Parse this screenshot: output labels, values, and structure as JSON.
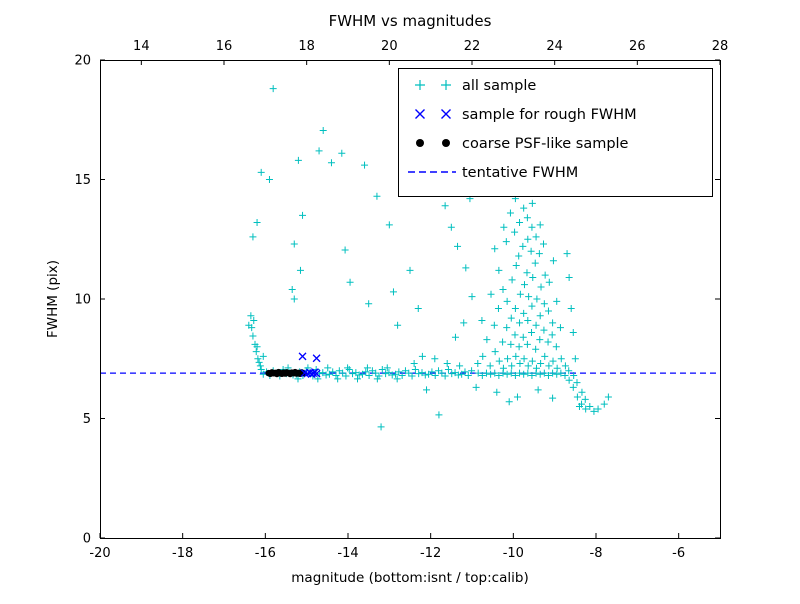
{
  "chart_data": {
    "type": "scatter",
    "title": "FWHM vs magnitudes",
    "xlabel": "magnitude (bottom:isnt / top:calib)",
    "ylabel": "FWHM (pix)",
    "xlim": [
      -20,
      -5
    ],
    "xlim_top": [
      13,
      28
    ],
    "ylim": [
      0,
      20
    ],
    "xticks_bottom": [
      -20,
      -18,
      -16,
      -14,
      -12,
      -10,
      -8,
      -6
    ],
    "xticks_top": [
      14,
      16,
      18,
      20,
      22,
      24,
      26,
      28
    ],
    "yticks": [
      0,
      5,
      10,
      15,
      20
    ],
    "grid": false,
    "legend_position": "upper right",
    "colors": {
      "all_sample": "#00bfbf",
      "rough_sample": "#0000ff",
      "coarse_sample": "#000000",
      "tentative_line": "#0000ff",
      "frame": "#000000",
      "background": "#ffffff"
    },
    "tentative_fwhm": 6.9,
    "series": [
      {
        "name": "all sample",
        "marker": "plus",
        "color": "#00bfbf",
        "points": [
          [
            -16.05,
            6.85
          ],
          [
            -15.97,
            6.95
          ],
          [
            -15.89,
            6.8
          ],
          [
            -15.81,
            7.0
          ],
          [
            -15.73,
            6.9
          ],
          [
            -15.65,
            6.78
          ],
          [
            -15.57,
            7.05
          ],
          [
            -15.49,
            6.88
          ],
          [
            -15.41,
            6.92
          ],
          [
            -15.33,
            6.82
          ],
          [
            -15.25,
            6.85
          ],
          [
            -15.17,
            6.95
          ],
          [
            -15.09,
            6.8
          ],
          [
            -15.01,
            7.0
          ],
          [
            -14.93,
            6.9
          ],
          [
            -14.85,
            6.78
          ],
          [
            -14.77,
            7.05
          ],
          [
            -14.69,
            6.88
          ],
          [
            -14.61,
            6.92
          ],
          [
            -14.53,
            6.82
          ],
          [
            -14.45,
            6.85
          ],
          [
            -14.37,
            6.95
          ],
          [
            -14.29,
            6.8
          ],
          [
            -14.21,
            7.0
          ],
          [
            -14.13,
            6.9
          ],
          [
            -14.05,
            6.78
          ],
          [
            -13.97,
            7.05
          ],
          [
            -13.89,
            6.88
          ],
          [
            -13.81,
            6.92
          ],
          [
            -13.73,
            6.82
          ],
          [
            -13.65,
            6.85
          ],
          [
            -13.57,
            6.95
          ],
          [
            -13.49,
            6.8
          ],
          [
            -13.41,
            7.0
          ],
          [
            -13.33,
            6.9
          ],
          [
            -13.25,
            6.78
          ],
          [
            -13.17,
            7.05
          ],
          [
            -13.09,
            6.88
          ],
          [
            -13.01,
            6.92
          ],
          [
            -12.93,
            6.82
          ],
          [
            -12.85,
            6.85
          ],
          [
            -12.77,
            6.95
          ],
          [
            -12.69,
            6.8
          ],
          [
            -12.61,
            7.0
          ],
          [
            -12.53,
            6.9
          ],
          [
            -12.45,
            6.78
          ],
          [
            -12.37,
            7.05
          ],
          [
            -12.29,
            6.88
          ],
          [
            -12.21,
            6.92
          ],
          [
            -12.13,
            6.82
          ],
          [
            -15.45,
            7.12
          ],
          [
            -15.21,
            6.66
          ],
          [
            -14.97,
            7.12
          ],
          [
            -14.73,
            6.66
          ],
          [
            -14.49,
            7.12
          ],
          [
            -14.25,
            6.66
          ],
          [
            -14.01,
            7.12
          ],
          [
            -13.77,
            6.66
          ],
          [
            -13.53,
            7.12
          ],
          [
            -13.29,
            6.66
          ],
          [
            -13.05,
            7.12
          ],
          [
            -12.81,
            6.66
          ],
          [
            -12.05,
            6.85
          ],
          [
            -11.97,
            6.95
          ],
          [
            -11.89,
            6.8
          ],
          [
            -11.81,
            7.0
          ],
          [
            -11.73,
            6.9
          ],
          [
            -11.65,
            6.78
          ],
          [
            -11.57,
            7.05
          ],
          [
            -11.49,
            6.88
          ],
          [
            -11.41,
            6.92
          ],
          [
            -11.33,
            6.82
          ],
          [
            -11.25,
            6.85
          ],
          [
            -11.17,
            6.95
          ],
          [
            -11.09,
            6.8
          ],
          [
            -11.01,
            7.0
          ],
          [
            -11.6,
            7.3
          ],
          [
            -11.9,
            7.5
          ],
          [
            -12.2,
            7.6
          ],
          [
            -11.3,
            7.2
          ],
          [
            -12.4,
            7.3
          ],
          [
            -16.12,
            7.2
          ],
          [
            -16.18,
            7.5
          ],
          [
            -16.22,
            7.8
          ],
          [
            -16.25,
            8.1
          ],
          [
            -16.3,
            8.45
          ],
          [
            -16.33,
            8.8
          ],
          [
            -16.28,
            9.1
          ],
          [
            -16.2,
            8.0
          ],
          [
            -16.15,
            7.35
          ],
          [
            -16.35,
            9.3
          ],
          [
            -16.1,
            7.05
          ],
          [
            -16.4,
            8.9
          ],
          [
            -16.05,
            7.6
          ],
          [
            -16.3,
            12.6
          ],
          [
            -16.2,
            13.2
          ],
          [
            -15.81,
            18.8
          ],
          [
            -14.6,
            17.05
          ],
          [
            -16.1,
            15.3
          ],
          [
            -15.9,
            15.0
          ],
          [
            -15.2,
            15.8
          ],
          [
            -15.1,
            13.5
          ],
          [
            -15.3,
            12.3
          ],
          [
            -15.35,
            10.4
          ],
          [
            -15.15,
            11.2
          ],
          [
            -15.3,
            10.0
          ],
          [
            -14.7,
            16.2
          ],
          [
            -14.4,
            15.7
          ],
          [
            -14.15,
            16.1
          ],
          [
            -13.6,
            15.6
          ],
          [
            -13.3,
            14.3
          ],
          [
            -12.65,
            16.8
          ],
          [
            -13.0,
            13.1
          ],
          [
            -12.5,
            11.2
          ],
          [
            -14.07,
            12.05
          ],
          [
            -13.95,
            10.7
          ],
          [
            -13.5,
            9.8
          ],
          [
            -12.8,
            8.9
          ],
          [
            -12.3,
            9.6
          ],
          [
            -12.9,
            10.3
          ],
          [
            -13.2,
            4.65
          ],
          [
            -11.8,
            5.15
          ],
          [
            -12.1,
            6.2
          ],
          [
            -11.4,
            8.4
          ],
          [
            -11.2,
            9.0
          ],
          [
            -11.0,
            10.1
          ],
          [
            -11.15,
            11.3
          ],
          [
            -11.35,
            12.2
          ],
          [
            -11.5,
            13.0
          ],
          [
            -11.65,
            13.9
          ],
          [
            -11.05,
            14.2
          ],
          [
            -10.85,
            6.9
          ],
          [
            -10.86,
            7.3
          ],
          [
            -10.75,
            6.8
          ],
          [
            -10.74,
            7.6
          ],
          [
            -10.76,
            9.1
          ],
          [
            -10.65,
            6.9
          ],
          [
            -10.64,
            8.3
          ],
          [
            -10.55,
            6.85
          ],
          [
            -10.56,
            7.2
          ],
          [
            -10.54,
            10.2
          ],
          [
            -10.45,
            6.9
          ],
          [
            -10.44,
            7.8
          ],
          [
            -10.46,
            8.9
          ],
          [
            -10.45,
            12.1
          ],
          [
            -10.35,
            6.8
          ],
          [
            -10.34,
            7.4
          ],
          [
            -10.36,
            9.6
          ],
          [
            -10.35,
            11.2
          ],
          [
            -10.25,
            6.9
          ],
          [
            -10.24,
            7.1
          ],
          [
            -10.26,
            8.2
          ],
          [
            -10.25,
            10.4
          ],
          [
            -10.23,
            13.0
          ],
          [
            -10.15,
            6.85
          ],
          [
            -10.14,
            7.5
          ],
          [
            -10.16,
            8.8
          ],
          [
            -10.15,
            9.9
          ],
          [
            -10.17,
            12.4
          ],
          [
            -10.05,
            6.9
          ],
          [
            -10.04,
            7.2
          ],
          [
            -10.06,
            8.1
          ],
          [
            -10.05,
            9.2
          ],
          [
            -10.03,
            10.8
          ],
          [
            -10.07,
            13.6
          ],
          [
            -9.95,
            6.8
          ],
          [
            -9.94,
            7.6
          ],
          [
            -9.96,
            8.5
          ],
          [
            -9.95,
            9.6
          ],
          [
            -9.93,
            11.4
          ],
          [
            -9.97,
            12.8
          ],
          [
            -9.95,
            14.2
          ],
          [
            -9.85,
            6.9
          ],
          [
            -9.84,
            7.3
          ],
          [
            -9.86,
            8.0
          ],
          [
            -9.85,
            9.0
          ],
          [
            -9.83,
            10.2
          ],
          [
            -9.87,
            11.8
          ],
          [
            -9.85,
            13.2
          ],
          [
            -9.75,
            6.85
          ],
          [
            -9.74,
            7.5
          ],
          [
            -9.76,
            8.4
          ],
          [
            -9.75,
            9.4
          ],
          [
            -9.73,
            10.6
          ],
          [
            -9.77,
            12.2
          ],
          [
            -9.75,
            13.8
          ],
          [
            -9.74,
            14.6
          ],
          [
            -9.65,
            6.9
          ],
          [
            -9.64,
            7.2
          ],
          [
            -9.66,
            8.1
          ],
          [
            -9.65,
            9.1
          ],
          [
            -9.63,
            10.1
          ],
          [
            -9.67,
            11.1
          ],
          [
            -9.65,
            12.5
          ],
          [
            -9.66,
            13.4
          ],
          [
            -9.55,
            6.8
          ],
          [
            -9.54,
            7.4
          ],
          [
            -9.56,
            8.6
          ],
          [
            -9.55,
            9.7
          ],
          [
            -9.53,
            10.9
          ],
          [
            -9.57,
            12.0
          ],
          [
            -9.55,
            13.0
          ],
          [
            -9.54,
            14.0
          ],
          [
            -9.45,
            6.9
          ],
          [
            -9.44,
            7.1
          ],
          [
            -9.46,
            7.9
          ],
          [
            -9.45,
            8.9
          ],
          [
            -9.43,
            10.0
          ],
          [
            -9.47,
            11.5
          ],
          [
            -9.45,
            12.6
          ],
          [
            -9.35,
            6.85
          ],
          [
            -9.34,
            7.3
          ],
          [
            -9.36,
            8.3
          ],
          [
            -9.35,
            9.3
          ],
          [
            -9.33,
            10.5
          ],
          [
            -9.37,
            11.9
          ],
          [
            -9.35,
            13.1
          ],
          [
            -9.25,
            6.9
          ],
          [
            -9.24,
            7.6
          ],
          [
            -9.26,
            8.7
          ],
          [
            -9.25,
            9.8
          ],
          [
            -9.23,
            11.0
          ],
          [
            -9.27,
            12.3
          ],
          [
            -9.15,
            6.8
          ],
          [
            -9.14,
            7.2
          ],
          [
            -9.16,
            8.2
          ],
          [
            -9.15,
            9.5
          ],
          [
            -9.13,
            10.7
          ],
          [
            -9.05,
            6.9
          ],
          [
            -9.04,
            7.4
          ],
          [
            -9.06,
            8.5
          ],
          [
            -9.05,
            9.0
          ],
          [
            -9.03,
            11.6
          ],
          [
            -8.95,
            6.85
          ],
          [
            -8.94,
            7.1
          ],
          [
            -8.96,
            8.0
          ],
          [
            -8.95,
            9.9
          ],
          [
            -8.85,
            6.9
          ],
          [
            -8.84,
            7.5
          ],
          [
            -8.86,
            8.8
          ],
          [
            -8.75,
            6.8
          ],
          [
            -8.74,
            7.2
          ],
          [
            -8.65,
            6.6
          ],
          [
            -8.66,
            7.0
          ],
          [
            -8.55,
            6.3
          ],
          [
            -8.54,
            6.8
          ],
          [
            -8.45,
            5.9
          ],
          [
            -8.46,
            6.5
          ],
          [
            -8.35,
            5.6
          ],
          [
            -8.34,
            6.1
          ],
          [
            -8.25,
            5.4
          ],
          [
            -8.26,
            5.8
          ],
          [
            -8.15,
            5.5
          ],
          [
            -8.05,
            5.3
          ],
          [
            -7.95,
            5.4
          ],
          [
            -9.5,
            15.1
          ],
          [
            -10.0,
            14.9
          ],
          [
            -8.5,
            7.5
          ],
          [
            -8.55,
            8.6
          ],
          [
            -8.6,
            9.6
          ],
          [
            -8.65,
            10.9
          ],
          [
            -8.7,
            11.9
          ],
          [
            -10.9,
            6.3
          ],
          [
            -10.4,
            6.1
          ],
          [
            -9.9,
            5.9
          ],
          [
            -9.4,
            6.2
          ],
          [
            -10.1,
            5.7
          ],
          [
            -9.05,
            5.85
          ],
          [
            -7.8,
            5.6
          ],
          [
            -7.7,
            5.9
          ],
          [
            -8.4,
            5.5
          ]
        ]
      },
      {
        "name": "sample for rough FWHM",
        "marker": "x",
        "color": "#0000ff",
        "points": [
          [
            -15.05,
            6.9
          ],
          [
            -14.98,
            6.88
          ],
          [
            -14.92,
            6.92
          ],
          [
            -14.88,
            6.86
          ],
          [
            -14.84,
            6.9
          ],
          [
            -14.8,
            6.94
          ],
          [
            -14.76,
            6.88
          ],
          [
            -15.1,
            7.6
          ],
          [
            -14.76,
            7.52
          ]
        ]
      },
      {
        "name": "coarse PSF-like sample",
        "marker": "circle",
        "color": "#000000",
        "points": [
          [
            -15.92,
            6.9
          ],
          [
            -15.88,
            6.87
          ],
          [
            -15.84,
            6.93
          ],
          [
            -15.8,
            6.89
          ],
          [
            -15.76,
            6.91
          ],
          [
            -15.72,
            6.86
          ],
          [
            -15.68,
            6.94
          ],
          [
            -15.64,
            6.9
          ],
          [
            -15.6,
            6.87
          ],
          [
            -15.56,
            6.92
          ],
          [
            -15.52,
            6.88
          ],
          [
            -15.48,
            6.93
          ],
          [
            -15.44,
            6.9
          ],
          [
            -15.4,
            6.86
          ],
          [
            -15.36,
            6.92
          ],
          [
            -15.32,
            6.89
          ],
          [
            -15.28,
            6.94
          ],
          [
            -15.24,
            6.88
          ],
          [
            -15.2,
            6.91
          ],
          [
            -15.16,
            6.87
          ],
          [
            -15.12,
            6.93
          ],
          [
            -15.08,
            6.9
          ]
        ]
      },
      {
        "name": "tentative FWHM",
        "marker": "dashed-line",
        "color": "#0000ff",
        "y": 6.9
      }
    ]
  }
}
